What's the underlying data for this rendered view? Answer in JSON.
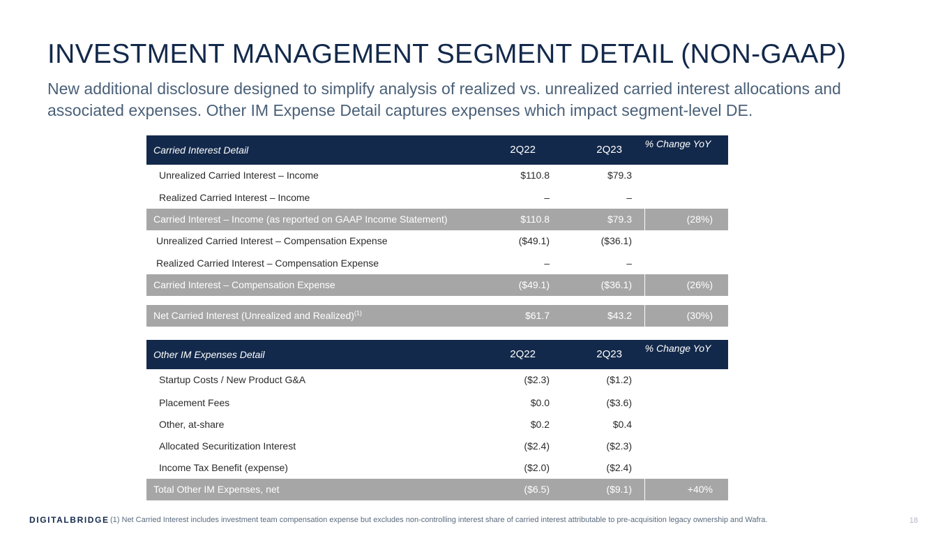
{
  "title": "INVESTMENT MANAGEMENT SEGMENT DETAIL (NON-GAAP)",
  "subtitle": "New additional disclosure designed to simplify analysis of realized vs. unrealized carried interest allocations and associated expenses.  Other IM Expense Detail captures expenses which impact segment-level DE.",
  "carried": {
    "header": {
      "label": "Carried Interest Detail",
      "q1": "2Q22",
      "q2": "2Q23",
      "chg": "% Change YoY"
    },
    "rows": [
      {
        "label": "Unrealized Carried Interest – Income",
        "q1": "$110.8",
        "q2": "$79.3",
        "chg": ""
      },
      {
        "label": "Realized Carried Interest – Income",
        "q1": "–",
        "q2": "–",
        "chg": ""
      },
      {
        "label": "Carried Interest – Income (as reported on GAAP Income Statement)",
        "q1": "$110.8",
        "q2": "$79.3",
        "chg": "(28%)"
      },
      {
        "label": "Unrealized Carried Interest – Compensation Expense",
        "q1": "($49.1)",
        "q2": "($36.1)",
        "chg": ""
      },
      {
        "label": "Realized Carried Interest – Compensation Expense",
        "q1": "–",
        "q2": "–",
        "chg": ""
      },
      {
        "label": "Carried Interest – Compensation Expense",
        "q1": "($49.1)",
        "q2": "($36.1)",
        "chg": "(26%)"
      }
    ],
    "net": {
      "label": "Net Carried Interest (Unrealized and Realized)",
      "sup": "(1)",
      "q1": "$61.7",
      "q2": "$43.2",
      "chg": "(30%)"
    }
  },
  "other": {
    "header": {
      "label": "Other IM Expenses Detail",
      "q1": "2Q22",
      "q2": "2Q23",
      "chg": "% Change YoY"
    },
    "rows": [
      {
        "label": "Startup Costs / New Product G&A",
        "q1": "($2.3)",
        "q2": "($1.2)"
      },
      {
        "label": "Placement Fees",
        "q1": "$0.0",
        "q2": "($3.6)"
      },
      {
        "label": "Other, at-share",
        "q1": "$0.2",
        "q2": "$0.4"
      },
      {
        "label": "Allocated Securitization Interest",
        "q1": "($2.4)",
        "q2": "($2.3)"
      },
      {
        "label": "Income Tax Benefit (expense)",
        "q1": "($2.0)",
        "q2": "($2.4)"
      }
    ],
    "total": {
      "label": "Total Other IM Expenses, net",
      "q1": "($6.5)",
      "q2": "($9.1)",
      "chg": "+40%"
    }
  },
  "footnote": "(1) Net Carried Interest includes investment team compensation expense but excludes non-controlling interest share of carried interest attributable to pre-acquisition legacy ownership and Wafra.",
  "logo": "DIGITALBRIDGE",
  "page_number": "18"
}
